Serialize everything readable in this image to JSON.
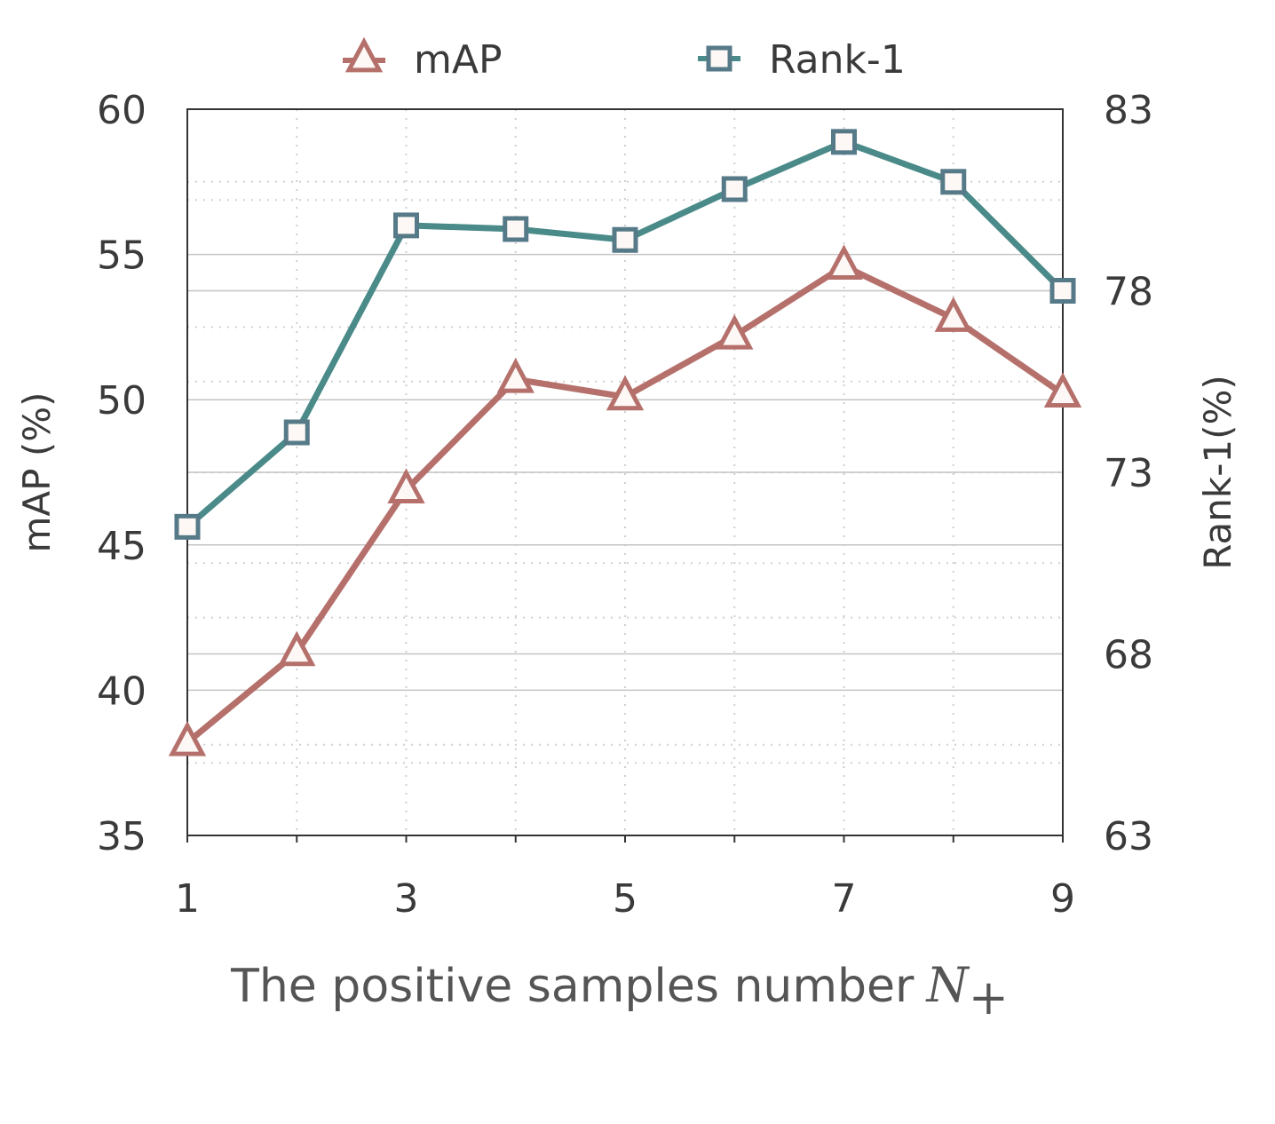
{
  "chart_data": {
    "type": "line",
    "title": "",
    "xlabel": "The positive samples number",
    "xlabel_symbol": "N",
    "xlabel_subscript": "+",
    "ylabel_left": "mAP (%)",
    "ylabel_right": "Rank-1(%)",
    "x": [
      1,
      2,
      3,
      4,
      5,
      6,
      7,
      8,
      9
    ],
    "x_ticks": [
      1,
      2,
      3,
      4,
      5,
      6,
      7,
      8,
      9
    ],
    "x_tick_labels": [
      "1",
      "",
      "3",
      "",
      "5",
      "",
      "7",
      "",
      "9"
    ],
    "xlim": [
      1,
      9
    ],
    "ylim_left": [
      35,
      60
    ],
    "y_ticks_left": [
      35,
      40,
      45,
      50,
      55,
      60
    ],
    "y_tick_labels_left": [
      "35",
      "40",
      "45",
      "50",
      "55",
      "60"
    ],
    "ylim_right": [
      63,
      83
    ],
    "y_ticks_right": [
      63,
      68,
      73,
      78,
      83
    ],
    "y_tick_labels_right": [
      "63",
      "68",
      "73",
      "78",
      "83"
    ],
    "grid": true,
    "legend_position": "top-center",
    "series": [
      {
        "name": "mAP",
        "axis": "left",
        "marker": "triangle",
        "color": "#b5706b",
        "values": [
          38.2,
          41.3,
          46.9,
          50.7,
          50.1,
          52.2,
          54.6,
          52.8,
          50.2
        ]
      },
      {
        "name": "Rank-1",
        "axis": "right",
        "marker": "square",
        "color": "#4a8a89",
        "values": [
          71.5,
          74.1,
          79.8,
          79.7,
          79.4,
          80.8,
          82.1,
          81.0,
          78.0
        ]
      }
    ]
  },
  "colors": {
    "map_line": "#b5706b",
    "map_marker_edge": "#b5706b",
    "rank_line": "#4a8a89",
    "rank_marker_edge": "#567a88",
    "marker_fill": "#fdf8f5"
  }
}
